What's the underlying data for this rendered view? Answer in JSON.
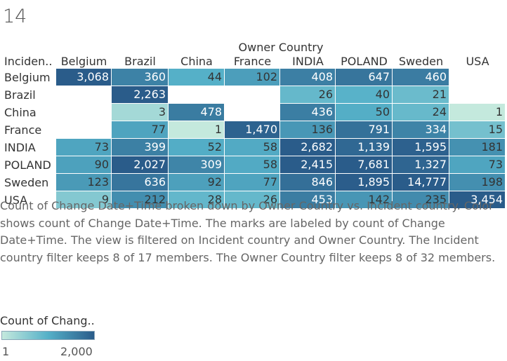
{
  "sheet_title": "14",
  "chart_data": {
    "type": "heatmap",
    "column_header_title": "Owner Country",
    "row_header_title": "Inciden..",
    "columns": [
      "Belgium",
      "Brazil",
      "China",
      "France",
      "INDIA",
      "POLAND",
      "Sweden",
      "USA"
    ],
    "rows": [
      "Belgium",
      "Brazil",
      "China",
      "France",
      "INDIA",
      "POLAND",
      "Sweden",
      "USA"
    ],
    "values": [
      [
        3068,
        360,
        44,
        102,
        408,
        647,
        460,
        null
      ],
      [
        null,
        2263,
        null,
        null,
        26,
        40,
        21,
        null
      ],
      [
        null,
        3,
        478,
        null,
        436,
        50,
        24,
        1
      ],
      [
        null,
        77,
        1,
        1470,
        136,
        791,
        334,
        15
      ],
      [
        73,
        399,
        52,
        58,
        2682,
        1139,
        1595,
        181
      ],
      [
        90,
        2027,
        309,
        58,
        2415,
        7681,
        1327,
        73
      ],
      [
        123,
        636,
        92,
        77,
        846,
        1895,
        14777,
        198
      ],
      [
        9,
        212,
        28,
        26,
        453,
        142,
        235,
        3454
      ]
    ],
    "color_scale": {
      "min": 1,
      "max": 2000,
      "min_label": "1",
      "max_label": "2,000",
      "colors": [
        "#c4e9dd",
        "#55b0c8",
        "#2a5c8a"
      ]
    },
    "legend_title": "Count of Chang.."
  },
  "caption": "Count of Change Date+Time broken down by Owner Country vs. Incident country.  Color shows count of Change Date+Time.  The marks are labeled by count of Change Date+Time. The view is filtered on Incident country and Owner Country. The Incident country filter keeps 8 of 17 members. The Owner Country filter keeps 8 of 32 members."
}
